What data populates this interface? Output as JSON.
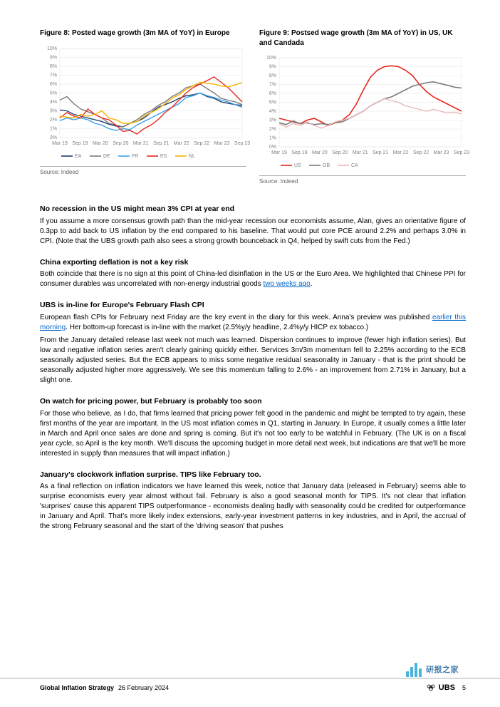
{
  "figure8": {
    "title": "Figure 8: Posted wage growth (3m MA of YoY) in Europe",
    "source": "Source: Indeed",
    "chart": {
      "type": "line",
      "background_color": "#ffffff",
      "grid_color": "#e6e6e6",
      "axis_color": "#c0c0c0",
      "plot_border_color": "#e0e0e0",
      "label_color": "#808080",
      "label_fontsize": 7,
      "ylim": [
        0,
        10
      ],
      "ytick_step": 1,
      "y_suffix": "%",
      "x_labels": [
        "Mar 19",
        "Sep 19",
        "Mar 20",
        "Sep 20",
        "Mar 21",
        "Sep 21",
        "Mar 22",
        "Sep 22",
        "Mar 23",
        "Sep 23"
      ],
      "series": [
        {
          "name": "EA",
          "label": "EA",
          "color": "#1f3a6e",
          "width": 1.4,
          "y": [
            3.1,
            3.0,
            2.6,
            2.4,
            2.2,
            2.0,
            1.8,
            1.5,
            1.3,
            1.2,
            1.6,
            1.8,
            2.2,
            2.8,
            3.4,
            3.7,
            4.0,
            4.4,
            4.7,
            4.8,
            5.0,
            4.6,
            4.4,
            4.0,
            3.85,
            3.7,
            3.6
          ]
        },
        {
          "name": "DE",
          "label": "DE",
          "color": "#7a7a7a",
          "width": 1.4,
          "y": [
            4.2,
            4.6,
            3.8,
            3.2,
            2.9,
            2.6,
            2.2,
            1.6,
            1.4,
            1.2,
            1.6,
            2.0,
            2.6,
            3.0,
            3.6,
            4.0,
            4.6,
            5.0,
            5.6,
            5.8,
            6.0,
            5.5,
            5.0,
            4.4,
            4.2,
            4.0,
            3.7
          ]
        },
        {
          "name": "FR",
          "label": "FR",
          "color": "#3aa0e8",
          "width": 1.4,
          "y": [
            1.9,
            2.2,
            2.0,
            2.2,
            2.0,
            1.6,
            1.4,
            1.0,
            0.8,
            1.0,
            0.9,
            1.4,
            1.8,
            2.2,
            2.6,
            3.0,
            3.4,
            3.8,
            4.5,
            4.7,
            5.0,
            4.7,
            4.5,
            4.2,
            4.0,
            3.7,
            3.4
          ]
        },
        {
          "name": "ES",
          "label": "ES",
          "color": "#e7281f",
          "width": 1.4,
          "y": [
            2.2,
            2.8,
            2.4,
            2.2,
            3.2,
            2.6,
            2.2,
            2.0,
            1.4,
            0.7,
            0.8,
            0.4,
            1.0,
            1.4,
            2.0,
            2.8,
            3.4,
            4.2,
            5.0,
            5.6,
            6.0,
            6.4,
            6.8,
            6.2,
            5.6,
            4.8,
            4.0
          ]
        },
        {
          "name": "NL",
          "label": "NL",
          "color": "#f4b400",
          "width": 1.4,
          "y": [
            2.4,
            2.3,
            2.2,
            2.6,
            2.4,
            2.6,
            3.0,
            2.2,
            2.0,
            1.6,
            1.6,
            1.8,
            2.4,
            2.8,
            3.2,
            3.8,
            4.4,
            4.8,
            5.4,
            5.8,
            6.2,
            6.1,
            6.0,
            5.8,
            5.7,
            5.9,
            6.2
          ]
        }
      ]
    }
  },
  "figure9": {
    "title": "Figure 9: Postsed wage growth (3m MA of YoY) in US, UK and Candada",
    "source": "Source: Indeed",
    "chart": {
      "type": "line",
      "background_color": "#ffffff",
      "grid_color": "#e6e6e6",
      "axis_color": "#c0c0c0",
      "plot_border_color": "#e0e0e0",
      "label_color": "#808080",
      "label_fontsize": 7,
      "ylim": [
        0,
        10
      ],
      "ytick_step": 1,
      "y_suffix": "%",
      "x_labels": [
        "Mar 19",
        "Sep 19",
        "Mar 20",
        "Sep 20",
        "Mar 21",
        "Sep 21",
        "Mar 22",
        "Sep 22",
        "Mar 23",
        "Sep 23"
      ],
      "series": [
        {
          "name": "US",
          "label": "US",
          "color": "#e7281f",
          "width": 1.6,
          "y": [
            3.2,
            3.0,
            2.8,
            2.6,
            3.0,
            3.2,
            2.8,
            2.4,
            2.7,
            3.0,
            3.6,
            4.8,
            6.4,
            7.8,
            8.6,
            9.0,
            9.1,
            9.0,
            8.6,
            8.0,
            7.0,
            6.2,
            5.6,
            5.2,
            4.8,
            4.4,
            4.0
          ]
        },
        {
          "name": "GB",
          "label": "GB",
          "color": "#7a7a7a",
          "width": 1.6,
          "y": [
            2.7,
            2.5,
            2.9,
            2.6,
            2.7,
            2.5,
            2.6,
            2.5,
            2.7,
            2.8,
            3.2,
            3.6,
            4.0,
            4.6,
            5.0,
            5.4,
            5.6,
            6.0,
            6.4,
            6.8,
            7.0,
            7.2,
            7.3,
            7.1,
            6.9,
            6.7,
            6.6
          ]
        },
        {
          "name": "CA",
          "label": "CA",
          "color": "#e9b8b8",
          "width": 1.4,
          "y": [
            2.6,
            2.2,
            2.6,
            2.4,
            2.8,
            2.4,
            2.1,
            2.4,
            2.8,
            3.0,
            3.2,
            3.6,
            4.0,
            4.6,
            5.0,
            5.4,
            5.2,
            5.0,
            4.6,
            4.4,
            4.2,
            4.0,
            4.2,
            4.0,
            3.8,
            3.9,
            3.7
          ]
        }
      ]
    }
  },
  "sections": [
    {
      "heading": "No recession in the US might mean 3% CPI at year end",
      "paras": [
        "If you assume a more consensus growth path than the mid-year recession our economists assume, Alan, gives an orientative figure of 0.3pp to add back to US inflation by the end compared to his baseline. That would put core PCE around 2.2% and perhaps 3.0% in CPI. (Note that the UBS growth path also sees a strong growth bounceback in Q4, helped by swift cuts from the Fed.)"
      ]
    },
    {
      "heading": "China exporting deflation is not a key risk",
      "paras": [
        "Both coincide that there is no sign at this point of China-led disinflation in the US or the Euro Area. We highlighted that Chinese PPI for consumer durables was uncorrelated with non-energy industrial goods <a class=\"link\" data-name=\"link-two-weeks-ago\" data-interactable=\"true\">two weeks ago</a>."
      ]
    },
    {
      "heading": "UBS is in-line for Europe's February Flash CPI",
      "paras": [
        "European flash CPIs for February next Friday are the key event in the diary for this week. Anna's preview was published <a class=\"link\" data-name=\"link-earlier-this-morning\" data-interactable=\"true\">earlier this morning</a>. Her bottom-up forecast is in-line with the market (2.5%y/y headline, 2.4%y/y HICP ex tobacco.)",
        "From the January detailed release last week not much was learned. Dispersion continues to improve (fewer high inflation series). But low and negative inflation series aren't clearly gaining quickly either. Services 3m/3m momentum fell to 2.25% according to the ECB seasonally adjusted series. But the ECB appears to miss some negative residual seasonality in January - that is the print should be seasonally adjusted higher more aggressively. We see this momentum falling to 2.6% - an improvement from 2.71% in January, but a slight one."
      ]
    },
    {
      "heading": "On watch for pricing power, but February is probably too soon",
      "paras": [
        "For those who believe, as I do, that firms learned that pricing power felt good in the pandemic and might be tempted to try again, these first months of the year are important. In the US most inflation comes in Q1, starting in January. In Europe, it usually comes a little later in March and April once sales are done and spring is coming. But it's not too early to be watchful in February. (The UK is on a fiscal year cycle, so April is the key month. We'll discuss the upcoming budget in more detail next week, but indications are that we'll be more interested in supply than measures that will impact inflation.)"
      ]
    },
    {
      "heading": "January's clockwork inflation surprise. TIPS like February too.",
      "paras": [
        "As a final reflection on inflation indicators we have learned this week, notice that January data (released in February) seems able to surprise economists every year almost without fail. February is also a good seasonal month for TIPS. It's not clear that inflation 'surprises' cause this apparent TIPS outperformance - economists dealing badly with seasonality could be credited for outperformance in January and April. That's more likely index extensions, early-year investment patterns in key industries, and in April, the accrual of the strong February seasonal and the start of the 'driving season' that pushes"
      ]
    }
  ],
  "footer": {
    "title": "Global Inflation Strategy",
    "date": "26 February 2024",
    "page": "5",
    "brand": "UBS"
  },
  "watermark": {
    "text": "研报之家",
    "bar_color": "#2aa8d8",
    "bar_heights": [
      8,
      14,
      20,
      12
    ]
  }
}
